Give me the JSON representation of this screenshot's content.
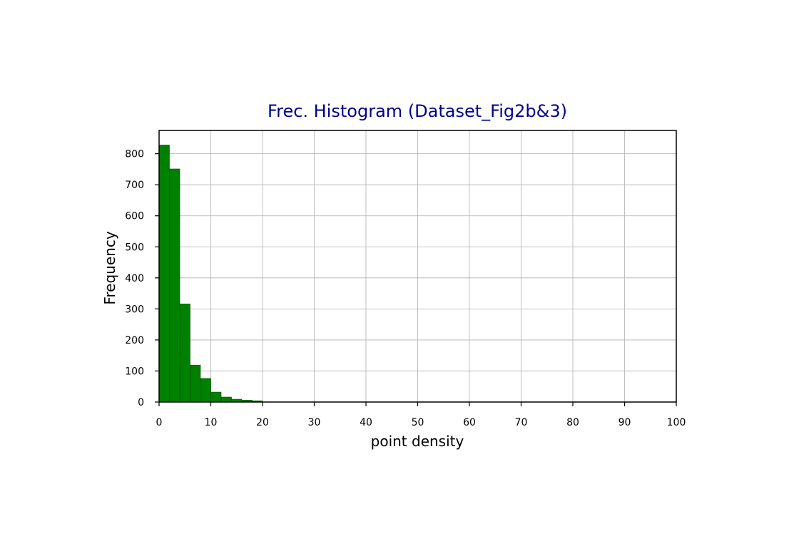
{
  "chart_data": {
    "type": "bar",
    "title": "Frec. Histogram (Dataset_Fig2b&3)",
    "xlabel": "point density",
    "ylabel": "Frequency",
    "xlim": [
      0,
      100
    ],
    "ylim": [
      0,
      875
    ],
    "xticks": [
      0,
      10,
      20,
      30,
      40,
      50,
      60,
      70,
      80,
      90,
      100
    ],
    "yticks": [
      0,
      100,
      200,
      300,
      400,
      500,
      600,
      700,
      800
    ],
    "bin_width": 2,
    "bin_starts": [
      0,
      2,
      4,
      6,
      8,
      10,
      12,
      14,
      16,
      18
    ],
    "values": [
      828,
      751,
      316,
      119,
      76,
      32,
      16,
      9,
      6,
      4
    ],
    "grid": true,
    "colors": {
      "bar_fill": "#008000",
      "bar_edge": "#004d00",
      "title": "#00008b",
      "grid": "#b0b0b0",
      "axes": "#000000"
    }
  }
}
